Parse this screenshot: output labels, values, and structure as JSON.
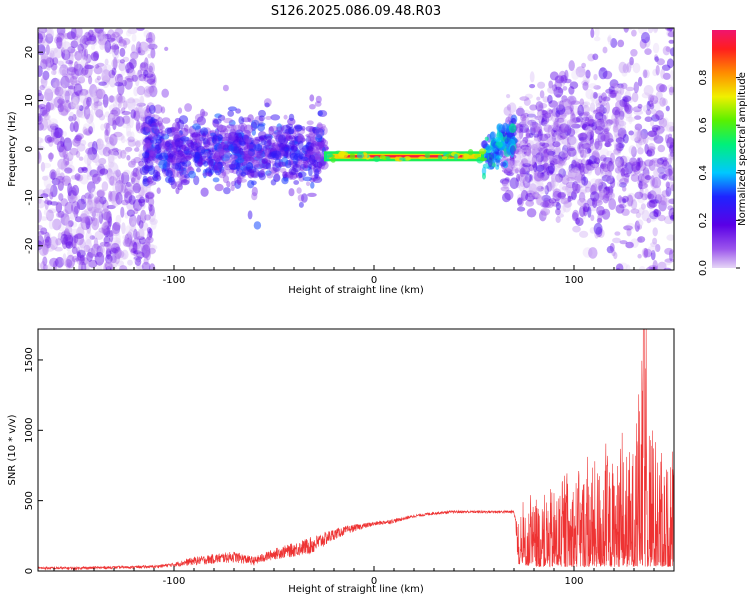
{
  "title": "S126.2025.086.09.48.R03",
  "colors": {
    "series": "#ee3333",
    "core": "#e0363b",
    "axis": "#000000",
    "background": "#ffffff"
  },
  "colorbar": {
    "label": "Normalized spectral amplitude",
    "ticks": [
      "0.0",
      "0.2",
      "0.4",
      "0.6",
      "0.8"
    ],
    "tick_values": [
      0.0,
      0.2,
      0.4,
      0.6,
      0.8
    ],
    "range": [
      0,
      1
    ],
    "colormap": "rainbow (lavender-purple-blue-cyan-green-yellow-red-magenta)"
  },
  "chart_data": [
    {
      "type": "heatmap",
      "xlabel": "Height of straight line (km)",
      "ylabel": "Frequency (Hz)",
      "xlim": [
        -168,
        150
      ],
      "ylim": [
        -25,
        25
      ],
      "xticks": [
        -100,
        0,
        100
      ],
      "xtick_labels": [
        "-100",
        "0",
        "100"
      ],
      "yticks": [
        -20,
        -10,
        0,
        10,
        20
      ],
      "ytick_labels": [
        "-20",
        "-10",
        "0",
        "10",
        "20"
      ],
      "grid": false,
      "features": {
        "coherent_band": {
          "x_range": [
            -25,
            55
          ],
          "frequency_hz": -1.5,
          "amplitude": 0.95
        },
        "diffuse_scatter_left": {
          "x_range": [
            -168,
            -110
          ],
          "frequency_spread_hz": [
            -25,
            25
          ]
        },
        "concentrated_scatter": {
          "x_range": [
            -115,
            -25
          ],
          "frequency_spread_hz": [
            -8,
            8
          ]
        },
        "diffuse_scatter_right": {
          "x_range": [
            65,
            150
          ],
          "frequency_spread_hz": [
            -25,
            25
          ]
        }
      }
    },
    {
      "type": "line",
      "xlabel": "Height of straight line (km)",
      "ylabel": "SNR (10 * v/v)",
      "xlim": [
        -168,
        150
      ],
      "ylim": [
        0,
        1720
      ],
      "xticks": [
        -100,
        0,
        100
      ],
      "xtick_labels": [
        "-100",
        "0",
        "100"
      ],
      "yticks": [
        0,
        500,
        1000,
        1500
      ],
      "ytick_labels": [
        "0",
        "500",
        "1000",
        "1500"
      ],
      "grid": false,
      "legend": "none",
      "series": [
        {
          "x": [
            -168,
            -150,
            -130,
            -110,
            -100,
            -90,
            -80,
            -70,
            -60,
            -50,
            -40,
            -30,
            -20,
            -10,
            0,
            10,
            20,
            30,
            40,
            50,
            60,
            70,
            72,
            80,
            90,
            100,
            110,
            120,
            130,
            135,
            140,
            150
          ],
          "y": [
            30,
            30,
            35,
            40,
            60,
            100,
            120,
            140,
            100,
            160,
            200,
            250,
            300,
            330,
            350,
            370,
            400,
            420,
            430,
            430,
            430,
            430,
            380,
            500,
            600,
            700,
            780,
            800,
            900,
            1720,
            900,
            700
          ],
          "band_low": [
            10,
            10,
            15,
            20,
            30,
            40,
            50,
            60,
            40,
            80,
            100,
            120,
            220,
            280,
            320,
            340,
            380,
            400,
            410,
            410,
            410,
            410,
            50,
            30,
            30,
            30,
            30,
            30,
            30,
            30,
            30,
            30
          ]
        }
      ]
    }
  ]
}
